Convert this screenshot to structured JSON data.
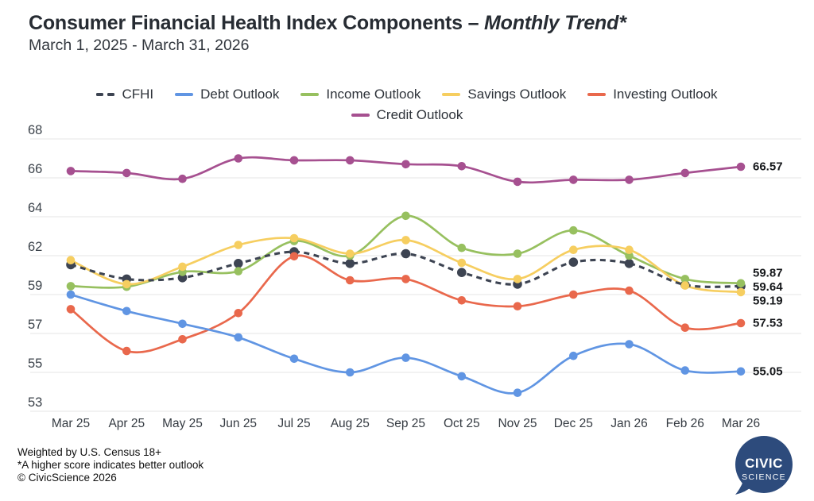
{
  "header": {
    "title_prefix": "Consumer Financial Health Index Components – ",
    "title_emphasis": "Monthly Trend*",
    "subtitle": "March 1, 2025 - March 31, 2026"
  },
  "legend": {
    "items": [
      {
        "label": "CFHI",
        "color": "#3d4452",
        "dashed": true
      },
      {
        "label": "Debt Outlook",
        "color": "#6095e3",
        "dashed": false
      },
      {
        "label": "Income Outlook",
        "color": "#97c05f",
        "dashed": false
      },
      {
        "label": "Savings Outlook",
        "color": "#f6ce60",
        "dashed": false
      },
      {
        "label": "Investing Outlook",
        "color": "#e9684c",
        "dashed": false
      },
      {
        "label": "Credit Outlook",
        "color": "#a65090",
        "dashed": false
      }
    ]
  },
  "chart_data": {
    "type": "line",
    "title": "Consumer Financial Health Index Components – Monthly Trend*",
    "subtitle": "March 1, 2025 - March 31, 2026",
    "x": [
      "Mar 25",
      "Apr 25",
      "May 25",
      "Jun 25",
      "Jul 25",
      "Aug 25",
      "Sep 25",
      "Oct 25",
      "Nov 25",
      "Dec 25",
      "Jan 26",
      "Feb 26",
      "Mar 26"
    ],
    "y_ticks": [
      53,
      55,
      57,
      59,
      62,
      64,
      66,
      68
    ],
    "axis_note": "y ticks are evenly spaced on screen (non-linear scale)",
    "grid": true,
    "legend_position": "top-center",
    "series": [
      {
        "name": "CFHI",
        "color": "#3d4452",
        "dashed": true,
        "values": [
          61.3,
          60.2,
          60.3,
          61.4,
          62.2,
          61.4,
          62.1,
          60.7,
          59.8,
          61.5,
          61.4,
          59.75,
          59.64
        ],
        "end_label": "59.64"
      },
      {
        "name": "Debt Outlook",
        "color": "#6095e3",
        "dashed": false,
        "values": [
          59.0,
          58.15,
          57.5,
          56.8,
          55.7,
          55.0,
          55.75,
          54.8,
          53.95,
          55.85,
          56.45,
          55.1,
          55.05
        ],
        "end_label": "55.05"
      },
      {
        "name": "Income Outlook",
        "color": "#97c05f",
        "dashed": false,
        "values": [
          59.65,
          59.6,
          60.75,
          60.8,
          62.75,
          62.0,
          64.05,
          62.4,
          62.1,
          63.3,
          62.0,
          60.2,
          59.87
        ],
        "end_label": "59.87"
      },
      {
        "name": "Savings Outlook",
        "color": "#f6ce60",
        "dashed": false,
        "values": [
          61.65,
          59.8,
          61.15,
          62.55,
          62.9,
          62.1,
          62.8,
          61.45,
          60.2,
          62.3,
          62.3,
          59.7,
          59.19
        ],
        "end_label": "59.19"
      },
      {
        "name": "Investing Outlook",
        "color": "#e9684c",
        "dashed": false,
        "values": [
          58.25,
          56.1,
          56.7,
          58.05,
          61.95,
          60.1,
          60.2,
          58.7,
          58.4,
          59.0,
          59.3,
          57.3,
          57.53
        ],
        "end_label": "57.53"
      },
      {
        "name": "Credit Outlook",
        "color": "#a65090",
        "dashed": false,
        "values": [
          66.35,
          66.25,
          65.95,
          67.0,
          66.9,
          66.9,
          66.7,
          66.6,
          65.8,
          65.9,
          65.9,
          66.25,
          66.57
        ],
        "end_label": "66.57"
      }
    ]
  },
  "footnotes": [
    "Weighted by U.S. Census 18+",
    "*A higher score indicates better outlook",
    "© CivicScience 2026"
  ],
  "logo": {
    "line1": "CIVIC",
    "line2": "SCIENCE",
    "color": "#2d4b7c"
  }
}
